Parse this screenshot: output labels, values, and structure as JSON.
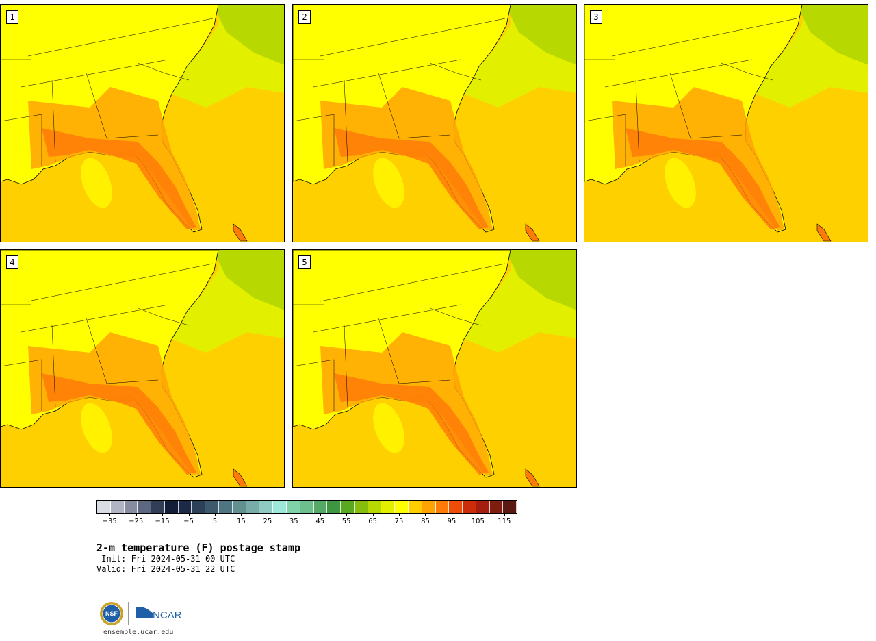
{
  "panels": [
    {
      "label": "1"
    },
    {
      "label": "2"
    },
    {
      "label": "3"
    },
    {
      "label": "4"
    },
    {
      "label": "5"
    }
  ],
  "colorbar": {
    "colors": [
      "#d9dce3",
      "#b1b4c3",
      "#878ca0",
      "#5e6780",
      "#323d58",
      "#141d38",
      "#1d2a47",
      "#2c4057",
      "#3d5a6d",
      "#4f7582",
      "#61918f",
      "#77aca9",
      "#8ecac2",
      "#9de8d8",
      "#80d3a9",
      "#6cc08e",
      "#55a866",
      "#3d9640",
      "#58a821",
      "#87bd0c",
      "#b7d800",
      "#e2f000",
      "#ffff00",
      "#ffcd00",
      "#ffa305",
      "#ff7b08",
      "#ee4d08",
      "#cb2d0b",
      "#a51d0e",
      "#7e1d10",
      "#5b1a11"
    ],
    "tick_labels": [
      "−35",
      "−25",
      "−15",
      "−5",
      "5",
      "15",
      "25",
      "35",
      "45",
      "55",
      "65",
      "75",
      "85",
      "95",
      "105",
      "115"
    ],
    "min": -40,
    "max": 120
  },
  "title": "2-m temperature (F) postage stamp",
  "init_line": " Init: Fri 2024-05-31 00 UTC",
  "valid_line": "Valid: Fri 2024-05-31 22 UTC",
  "logos": {
    "nsf": "NSF",
    "ncar": "NCAR"
  },
  "site": "ensemble.ucar.edu",
  "map_colors": {
    "water": "#ffd000",
    "land_warm": "#ffa305",
    "land_hot": "#ff7b08",
    "land": "#ffff00",
    "cool": "#e2f000",
    "cooler": "#b7d800"
  }
}
